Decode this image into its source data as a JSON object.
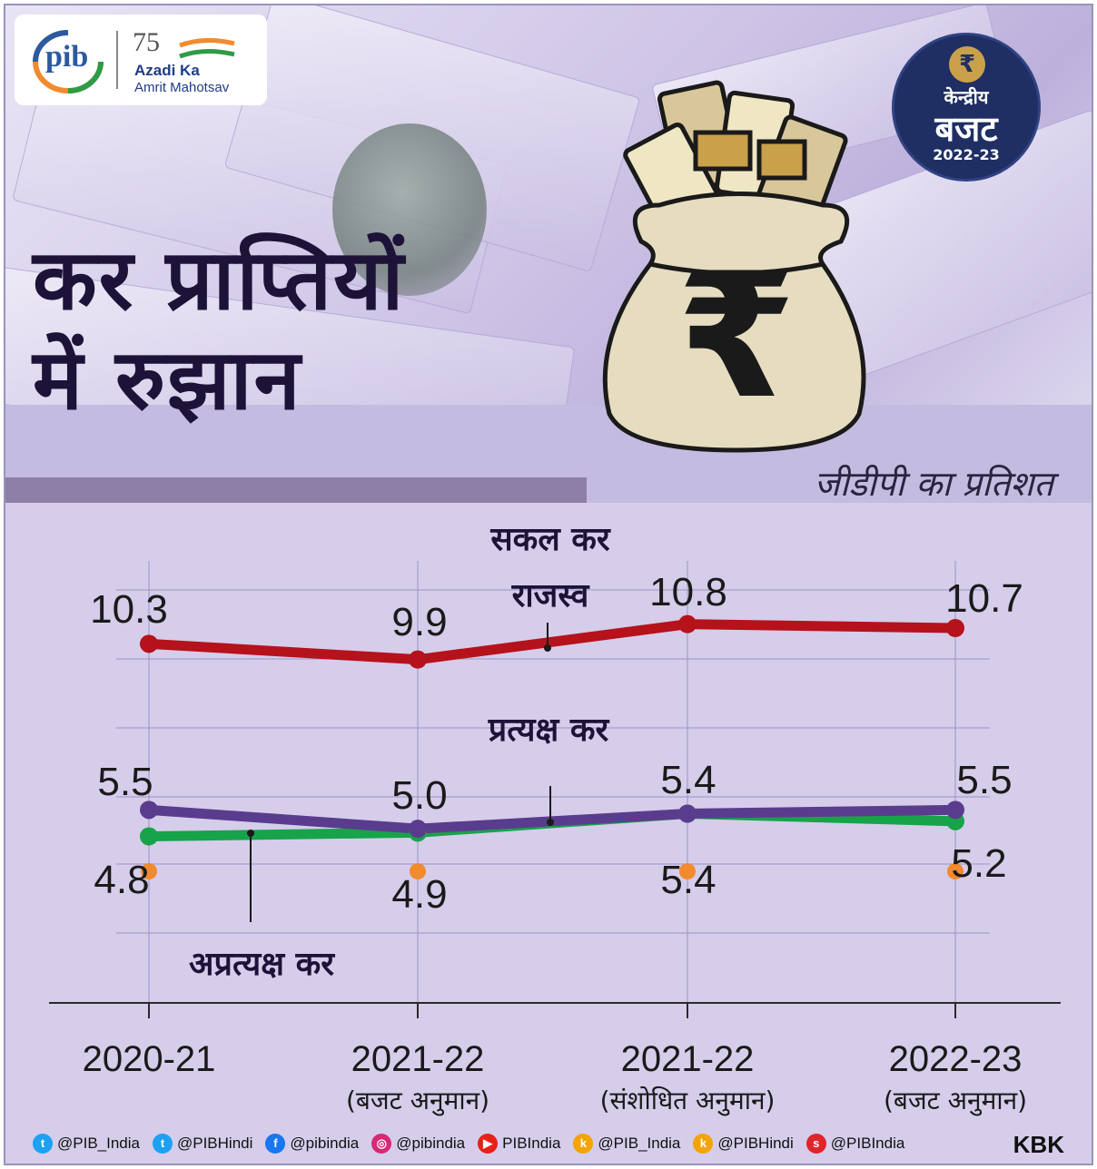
{
  "header": {
    "pib_logo_text": "pib",
    "azadi_number": "75",
    "azadi_line1": "Azadi Ka",
    "azadi_line2": "Amrit Mahotsav",
    "badge": {
      "line1": "केन्द्रीय",
      "line2": "बजट",
      "line3": "2022-23",
      "rupee": "₹"
    },
    "title_line1": "कर प्राप्तियों",
    "title_line2": "में रुझान",
    "bag_symbol": "₹",
    "subtitle": "जीडीपी का प्रतिशत"
  },
  "chart_data": {
    "type": "line",
    "categories": [
      {
        "year": "2020-21",
        "note": ""
      },
      {
        "year": "2021-22",
        "note": "(बजट अनुमान)"
      },
      {
        "year": "2021-22",
        "note": "(संशोधित अनुमान)"
      },
      {
        "year": "2022-23",
        "note": "(बजट अनुमान)"
      }
    ],
    "series": [
      {
        "name": "सकल कर राजस्व",
        "name_line1": "सकल कर",
        "name_line2": "राजस्व",
        "values": [
          10.3,
          9.9,
          10.8,
          10.7
        ],
        "color": "#b5121b"
      },
      {
        "name": "प्रत्यक्ष कर",
        "values": [
          5.5,
          5.0,
          5.4,
          5.5
        ],
        "color": "#5a3c8e"
      },
      {
        "name": "अप्रत्यक्ष कर",
        "values": [
          4.8,
          4.9,
          5.4,
          5.2
        ],
        "color": "#17a34a",
        "label_color": "#f28a2e"
      }
    ],
    "grid": true
  },
  "footer": {
    "handles": [
      {
        "icon": "twitter-icon",
        "text": "@PIB_India",
        "color": "#1da1f2",
        "glyph": "t"
      },
      {
        "icon": "twitter-icon",
        "text": "@PIBHindi",
        "color": "#1da1f2",
        "glyph": "t"
      },
      {
        "icon": "facebook-icon",
        "text": "@pibindia",
        "color": "#1877f2",
        "glyph": "f"
      },
      {
        "icon": "instagram-icon",
        "text": "@pibindia",
        "color": "#d62976",
        "glyph": "◎"
      },
      {
        "icon": "youtube-icon",
        "text": "PIBIndia",
        "color": "#e62117",
        "glyph": "▶"
      },
      {
        "icon": "koo-icon",
        "text": "@PIB_India",
        "color": "#f4a300",
        "glyph": "k"
      },
      {
        "icon": "koo-icon",
        "text": "@PIBHindi",
        "color": "#f4a300",
        "glyph": "k"
      },
      {
        "icon": "sharechat-icon",
        "text": "@PIBIndia",
        "color": "#e0242b",
        "glyph": "s"
      }
    ],
    "credit": "KBK"
  }
}
